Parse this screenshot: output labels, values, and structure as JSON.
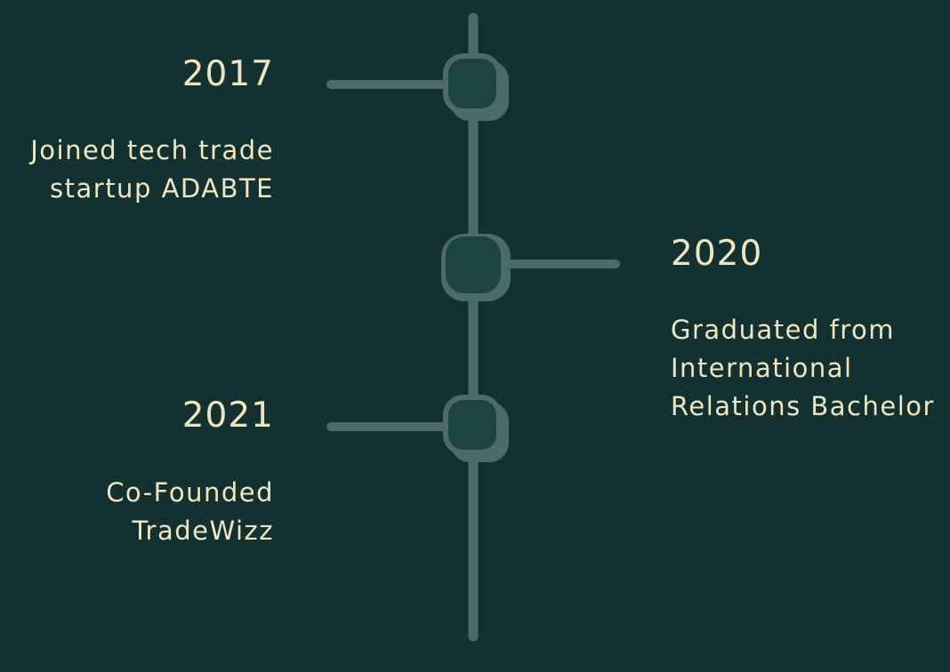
{
  "timeline": {
    "colors": {
      "background": "#143132",
      "line": "#4a6b69",
      "node_fill": "#1e4343",
      "text": "#efe6c1"
    },
    "events": [
      {
        "year": "2017",
        "description": "Joined tech trade\nstartup ADABTE",
        "side": "left"
      },
      {
        "year": "2020",
        "description": "Graduated from\nInternational\nRelations Bachelor",
        "side": "right"
      },
      {
        "year": "2021",
        "description": "Co-Founded\nTradeWizz",
        "side": "left"
      }
    ]
  }
}
